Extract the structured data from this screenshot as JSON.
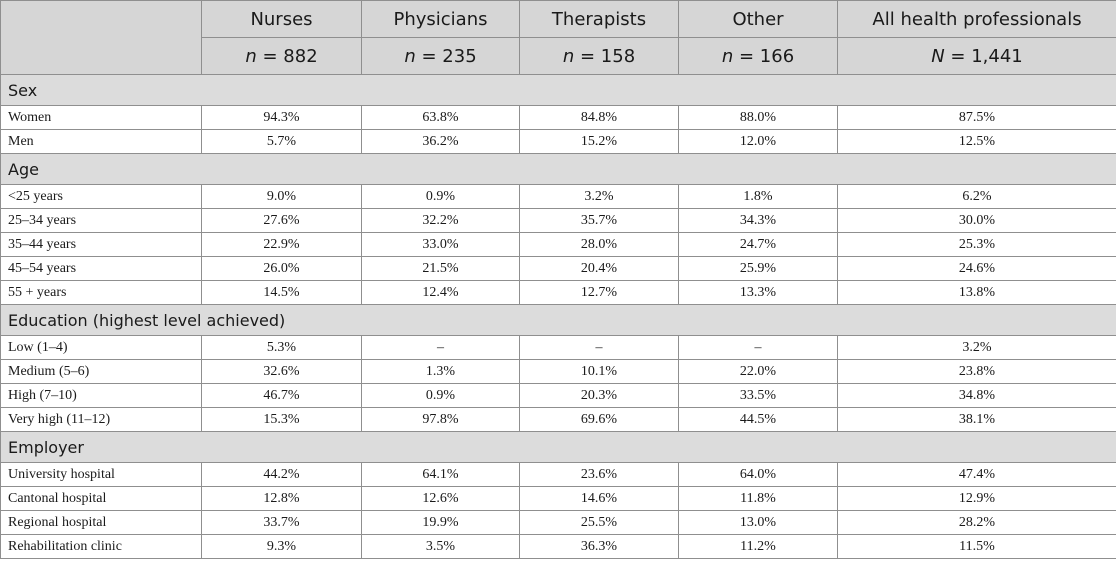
{
  "header": {
    "columns": [
      {
        "label": "Nurses",
        "n_var": "n",
        "n_value": " = 882"
      },
      {
        "label": "Physicians",
        "n_var": "n",
        "n_value": " = 235"
      },
      {
        "label": "Therapists",
        "n_var": "n",
        "n_value": " = 158"
      },
      {
        "label": "Other",
        "n_var": "n",
        "n_value": " = 166"
      },
      {
        "label": "All health professionals",
        "n_var": "N",
        "n_value": " = 1,441"
      }
    ]
  },
  "sections": [
    {
      "title": "Sex",
      "rows": [
        {
          "label": "Women",
          "values": [
            "94.3%",
            "63.8%",
            "84.8%",
            "88.0%",
            "87.5%"
          ]
        },
        {
          "label": "Men",
          "values": [
            "5.7%",
            "36.2%",
            "15.2%",
            "12.0%",
            "12.5%"
          ]
        }
      ]
    },
    {
      "title": "Age",
      "rows": [
        {
          "label": "<25 years",
          "values": [
            "9.0%",
            "0.9%",
            "3.2%",
            "1.8%",
            "6.2%"
          ]
        },
        {
          "label": "25–34 years",
          "values": [
            "27.6%",
            "32.2%",
            "35.7%",
            "34.3%",
            "30.0%"
          ]
        },
        {
          "label": "35–44 years",
          "values": [
            "22.9%",
            "33.0%",
            "28.0%",
            "24.7%",
            "25.3%"
          ]
        },
        {
          "label": "45–54 years",
          "values": [
            "26.0%",
            "21.5%",
            "20.4%",
            "25.9%",
            "24.6%"
          ]
        },
        {
          "label": "55 + years",
          "values": [
            "14.5%",
            "12.4%",
            "12.7%",
            "13.3%",
            "13.8%"
          ]
        }
      ]
    },
    {
      "title": "Education (highest level achieved)",
      "rows": [
        {
          "label": "Low (1–4)",
          "values": [
            "5.3%",
            "–",
            "–",
            "–",
            "3.2%"
          ]
        },
        {
          "label": "Medium (5–6)",
          "values": [
            "32.6%",
            "1.3%",
            "10.1%",
            "22.0%",
            "23.8%"
          ]
        },
        {
          "label": "High (7–10)",
          "values": [
            "46.7%",
            "0.9%",
            "20.3%",
            "33.5%",
            "34.8%"
          ]
        },
        {
          "label": "Very high (11–12)",
          "values": [
            "15.3%",
            "97.8%",
            "69.6%",
            "44.5%",
            "38.1%"
          ]
        }
      ]
    },
    {
      "title": "Employer",
      "rows": [
        {
          "label": "University hospital",
          "values": [
            "44.2%",
            "64.1%",
            "23.6%",
            "64.0%",
            "47.4%"
          ]
        },
        {
          "label": "Cantonal hospital",
          "values": [
            "12.8%",
            "12.6%",
            "14.6%",
            "11.8%",
            "12.9%"
          ]
        },
        {
          "label": "Regional hospital",
          "values": [
            "33.7%",
            "19.9%",
            "25.5%",
            "13.0%",
            "28.2%"
          ]
        },
        {
          "label": "Rehabilitation clinic",
          "values": [
            "9.3%",
            "3.5%",
            "36.3%",
            "11.2%",
            "11.5%"
          ]
        }
      ]
    }
  ]
}
